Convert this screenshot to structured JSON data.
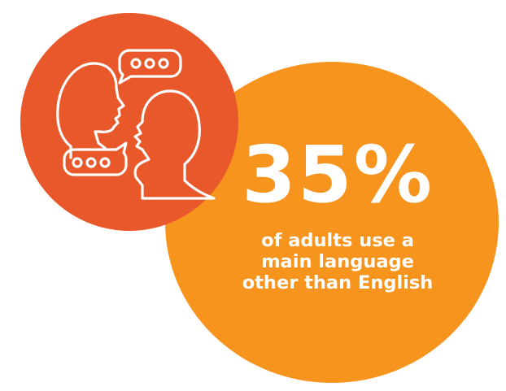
{
  "stat": {
    "value": "35%",
    "caption": "of adults use a main language other than English"
  },
  "colors": {
    "small_circle": "#e8582a",
    "big_circle": "#f7941d",
    "icon_stroke": "#ffffff",
    "text": "#ffffff"
  },
  "icon": {
    "name": "conversation-icon"
  }
}
